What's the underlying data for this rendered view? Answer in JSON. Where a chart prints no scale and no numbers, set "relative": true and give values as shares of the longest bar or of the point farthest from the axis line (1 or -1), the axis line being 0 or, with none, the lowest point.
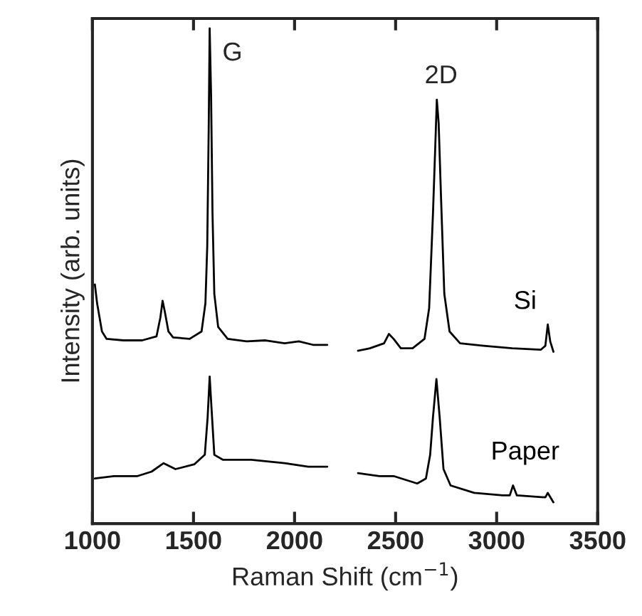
{
  "chart_data": {
    "type": "line",
    "relative": true,
    "xlabel": "Raman Shift (cm$^{−1}$)",
    "ylabel": "Intensity (arb. units)",
    "xlim": [
      1000,
      3500
    ],
    "xticks": [
      1000,
      1500,
      2000,
      2500,
      3000,
      3500
    ],
    "grid": false,
    "legend": false,
    "tick_labels": "x",
    "annotations": [
      "G",
      "2D"
    ],
    "series": [
      {
        "name": "Si",
        "color": "#000000",
        "x": [
          1012,
          1023,
          1047,
          1070,
          1153,
          1246,
          1317,
          1336,
          1347,
          1359,
          1376,
          1399,
          1481,
          1540,
          1559,
          1568,
          1575,
          1580,
          1587,
          1594,
          1603,
          1622,
          1669,
          1763,
          1857,
          1951,
          2021,
          2091,
          2162,
          2238,
          2314,
          2373,
          2443,
          2467,
          2490,
          2526,
          2584,
          2643,
          2666,
          2685,
          2697,
          2704,
          2713,
          2725,
          2741,
          2767,
          2819,
          2936,
          3077,
          3218,
          3241,
          3253,
          3265,
          3281
        ],
        "values": [
          0.483,
          0.445,
          0.388,
          0.373,
          0.37,
          0.37,
          0.378,
          0.416,
          0.45,
          0.426,
          0.388,
          0.376,
          0.373,
          0.388,
          0.445,
          0.56,
          0.789,
          1.0,
          0.866,
          0.627,
          0.464,
          0.397,
          0.373,
          0.368,
          0.37,
          0.364,
          0.368,
          0.361,
          0.361,
          null,
          0.349,
          0.354,
          0.364,
          0.383,
          0.373,
          0.354,
          0.354,
          0.373,
          0.435,
          0.627,
          0.77,
          0.856,
          0.809,
          0.656,
          0.464,
          0.388,
          0.364,
          0.359,
          0.354,
          0.351,
          0.359,
          0.402,
          0.368,
          0.347
        ]
      },
      {
        "name": "Paper",
        "color": "#000000",
        "x": [
          1012,
          1106,
          1223,
          1293,
          1352,
          1411,
          1505,
          1556,
          1570,
          1580,
          1589,
          1603,
          1645,
          1786,
          1951,
          2068,
          2162,
          2238,
          2314,
          2420,
          2490,
          2607,
          2650,
          2671,
          2685,
          2702,
          2718,
          2737,
          2772,
          2889,
          3030,
          3065,
          3081,
          3100,
          3241,
          3253,
          3281
        ],
        "values": [
          0.091,
          0.096,
          0.096,
          0.105,
          0.122,
          0.11,
          0.12,
          0.139,
          0.215,
          0.297,
          0.234,
          0.139,
          0.129,
          0.129,
          0.122,
          0.115,
          0.115,
          null,
          0.102,
          0.096,
          0.096,
          0.081,
          0.091,
          0.139,
          0.215,
          0.292,
          0.215,
          0.11,
          0.077,
          0.062,
          0.057,
          0.057,
          0.077,
          0.057,
          0.053,
          0.062,
          0.043
        ]
      }
    ]
  }
}
